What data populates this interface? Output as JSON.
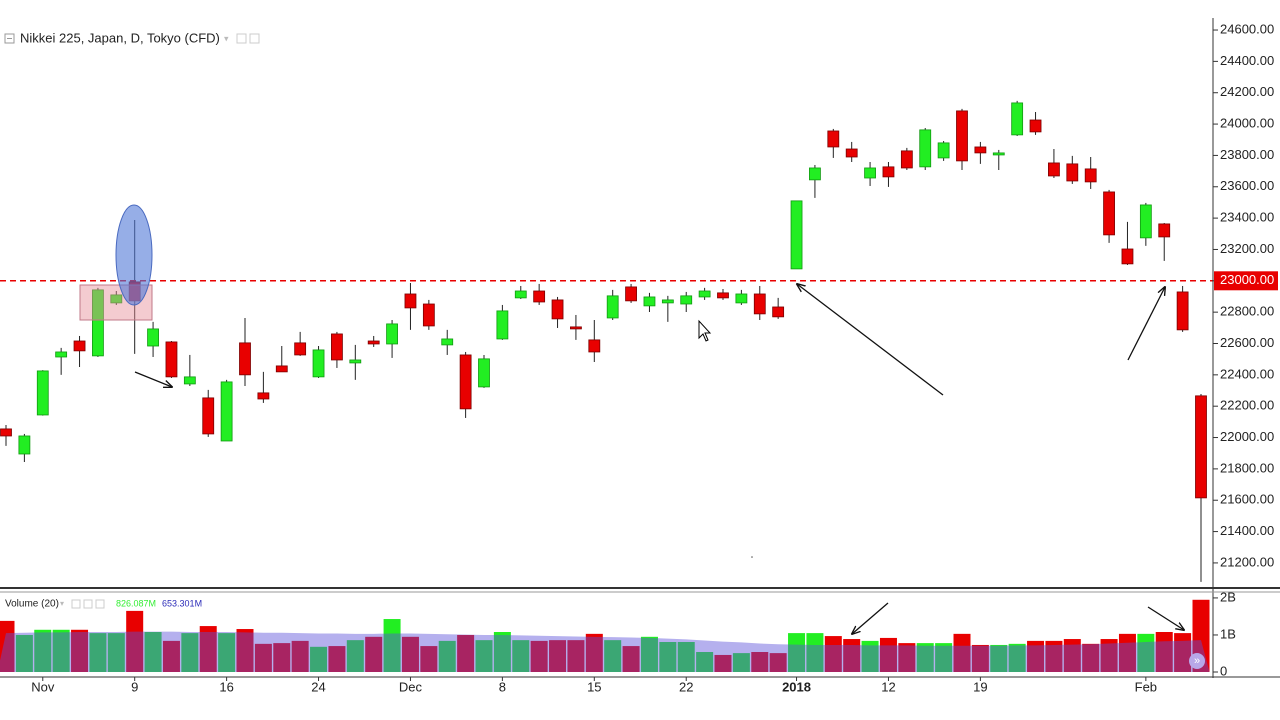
{
  "chart_data": [
    {
      "type": "candlestick",
      "title": "Nikkei 225, Japan, D, Tokyo (CFD)",
      "categories": [
        null,
        null,
        "Nov",
        null,
        null,
        null,
        null,
        "9",
        null,
        null,
        null,
        null,
        "16",
        null,
        null,
        null,
        null,
        "24",
        null,
        null,
        null,
        null,
        "Dec",
        null,
        null,
        null,
        null,
        "8",
        null,
        null,
        null,
        null,
        "15",
        null,
        null,
        null,
        null,
        "22",
        null,
        null,
        null,
        null,
        null,
        "2018",
        null,
        null,
        null,
        null,
        "12",
        null,
        null,
        null,
        null,
        "19",
        null,
        null,
        null,
        null,
        null,
        null,
        null,
        null,
        "Feb",
        null,
        null,
        null
      ],
      "open": [
        22055,
        21895,
        22144,
        22514,
        22616,
        22521,
        22859,
        22993,
        22584,
        22610,
        22342,
        22253,
        21978,
        22604,
        22285,
        22457,
        22604,
        22387,
        22661,
        22476,
        22616,
        22597,
        22916,
        22852,
        22591,
        22527,
        22323,
        22629,
        22891,
        22935,
        22878,
        22706,
        22623,
        22763,
        22961,
        22840,
        22859,
        22852,
        22897,
        22923,
        22859,
        22916,
        22833,
        23076,
        23644,
        23956,
        23841,
        23656,
        23727,
        23829,
        23727,
        23784,
        24084,
        23854,
        23803,
        23931,
        24026,
        23752,
        23746,
        23714,
        23567,
        23203,
        23274,
        23363,
        22929,
        22266
      ],
      "high": [
        22080,
        22023,
        22430,
        22572,
        22648,
        22955,
        22935,
        23388,
        22738,
        22616,
        22527,
        22304,
        22368,
        22763,
        22419,
        22584,
        22674,
        22584,
        22674,
        22591,
        22648,
        22750,
        22986,
        22878,
        22687,
        22546,
        22527,
        22846,
        22967,
        22980,
        22897,
        22782,
        22750,
        22942,
        22980,
        22923,
        22904,
        22929,
        22955,
        22948,
        22942,
        22967,
        22891,
        23510,
        23739,
        23969,
        23886,
        23758,
        23758,
        23848,
        23975,
        23892,
        24097,
        23886,
        23835,
        24148,
        24077,
        23841,
        23797,
        23790,
        23580,
        23376,
        23497,
        23369,
        22967,
        22278
      ],
      "low": [
        21947,
        21844,
        22140,
        22400,
        22450,
        22514,
        22846,
        22534,
        22514,
        22380,
        22329,
        22004,
        21978,
        22329,
        22221,
        22419,
        22521,
        22380,
        22444,
        22368,
        22578,
        22508,
        22687,
        22687,
        22527,
        22125,
        22317,
        22623,
        22884,
        22846,
        22699,
        22623,
        22482,
        22750,
        22859,
        22801,
        22738,
        22801,
        22878,
        22878,
        22846,
        22750,
        22757,
        23076,
        23529,
        23784,
        23758,
        23605,
        23599,
        23707,
        23707,
        23765,
        23707,
        23746,
        23707,
        23924,
        23931,
        23656,
        23618,
        23586,
        23242,
        23101,
        23223,
        23127,
        22674,
        21079
      ],
      "close": [
        22010,
        22010,
        22425,
        22546,
        22553,
        22942,
        22910,
        22872,
        22693,
        22387,
        22387,
        22023,
        22355,
        22400,
        22246,
        22419,
        22527,
        22559,
        22495,
        22495,
        22597,
        22725,
        22827,
        22712,
        22629,
        22183,
        22502,
        22808,
        22935,
        22865,
        22757,
        22693,
        22546,
        22904,
        22872,
        22897,
        22878,
        22904,
        22935,
        22891,
        22916,
        22789,
        22770,
        23510,
        23720,
        23854,
        23790,
        23720,
        23663,
        23720,
        23963,
        23880,
        23765,
        23816,
        23816,
        24135,
        23950,
        23669,
        23637,
        23631,
        23293,
        23108,
        23484,
        23280,
        22687,
        21615
      ],
      "up_color": "#22ee22",
      "down_color": "#e80000",
      "ylim": [
        21040,
        24664
      ],
      "yticks": [
        {
          "value": 21200,
          "label": "21200.00"
        },
        {
          "value": 21400,
          "label": "21400.00"
        },
        {
          "value": 21600,
          "label": "21600.00"
        },
        {
          "value": 21800,
          "label": "21800.00"
        },
        {
          "value": 22000,
          "label": "22000.00"
        },
        {
          "value": 22200,
          "label": "22200.00"
        },
        {
          "value": 22400,
          "label": "22400.00"
        },
        {
          "value": 22600,
          "label": "22600.00"
        },
        {
          "value": 22800,
          "label": "22800.00"
        },
        {
          "value": 23000,
          "label": "23000.00"
        },
        {
          "value": 23200,
          "label": "23200.00"
        },
        {
          "value": 23400,
          "label": "23400.00"
        },
        {
          "value": 23600,
          "label": "23600.00"
        },
        {
          "value": 23800,
          "label": "23800.00"
        },
        {
          "value": 24000,
          "label": "24000.00"
        },
        {
          "value": 24200,
          "label": "24200.00"
        },
        {
          "value": 24400,
          "label": "24400.00"
        },
        {
          "value": 24600,
          "label": "24600.00"
        }
      ],
      "hline": {
        "value": 23000,
        "label": "23000.00",
        "color": "#e80000"
      }
    },
    {
      "type": "volume",
      "title": "Volume (20)",
      "values": [
        1380000000.0,
        1000000000.0,
        1140000000.0,
        1140000000.0,
        1140000000.0,
        1050000000.0,
        1050000000.0,
        1650000000.0,
        1080000000.0,
        840000000.0,
        1050000000.0,
        1240000000.0,
        1050000000.0,
        1160000000.0,
        760000000.0,
        780000000.0,
        840000000.0,
        680000000.0,
        700000000.0,
        860000000.0,
        950000000.0,
        1430000000.0,
        950000000.0,
        700000000.0,
        840000000.0,
        1000000000.0,
        860000000.0,
        1080000000.0,
        860000000.0,
        840000000.0,
        860000000.0,
        860000000.0,
        1030000000.0,
        860000000.0,
        700000000.0,
        950000000.0,
        810000000.0,
        810000000.0,
        540000000.0,
        460000000.0,
        510000000.0,
        540000000.0,
        510000000.0,
        1050000000.0,
        1050000000.0,
        970000000.0,
        890000000.0,
        840000000.0,
        920000000.0,
        780000000.0,
        780000000.0,
        780000000.0,
        1030000000.0,
        730000000.0,
        730000000.0,
        760000000.0,
        840000000.0,
        840000000.0,
        890000000.0,
        760000000.0,
        890000000.0,
        1030000000.0,
        1030000000.0,
        1080000000.0,
        1050000000.0,
        1950000000.0
      ],
      "ma": {
        "color": "#5b4fd9",
        "values": [
          1050000000.0,
          1060000000.0,
          1070000000.0,
          1070000000.0,
          1080000000.0,
          1080000000.0,
          1080000000.0,
          1090000000.0,
          1090000000.0,
          1090000000.0,
          1080000000.0,
          1080000000.0,
          1080000000.0,
          1070000000.0,
          1060000000.0,
          1060000000.0,
          1050000000.0,
          1040000000.0,
          1040000000.0,
          1030000000.0,
          1030000000.0,
          1040000000.0,
          1040000000.0,
          1030000000.0,
          1020000000.0,
          1010000000.0,
          1000000000.0,
          1000000000.0,
          990000000.0,
          980000000.0,
          970000000.0,
          960000000.0,
          950000000.0,
          940000000.0,
          930000000.0,
          920000000.0,
          900000000.0,
          880000000.0,
          850000000.0,
          820000000.0,
          800000000.0,
          770000000.0,
          750000000.0,
          740000000.0,
          730000000.0,
          730000000.0,
          730000000.0,
          720000000.0,
          720000000.0,
          720000000.0,
          710000000.0,
          710000000.0,
          710000000.0,
          710000000.0,
          710000000.0,
          720000000.0,
          720000000.0,
          730000000.0,
          740000000.0,
          750000000.0,
          770000000.0,
          790000000.0,
          810000000.0,
          830000000.0,
          840000000.0,
          860000000.0
        ]
      },
      "readouts": [
        {
          "text": "826.087M",
          "color": "#33ee33"
        },
        {
          "text": "653.301M",
          "color": "#2b2bb8"
        }
      ],
      "ylim": [
        0,
        2160000000
      ],
      "yticks": [
        0,
        {
          "value": 1000000000,
          "label": "1B"
        },
        {
          "value": 2000000000,
          "label": "2B"
        }
      ]
    }
  ]
}
